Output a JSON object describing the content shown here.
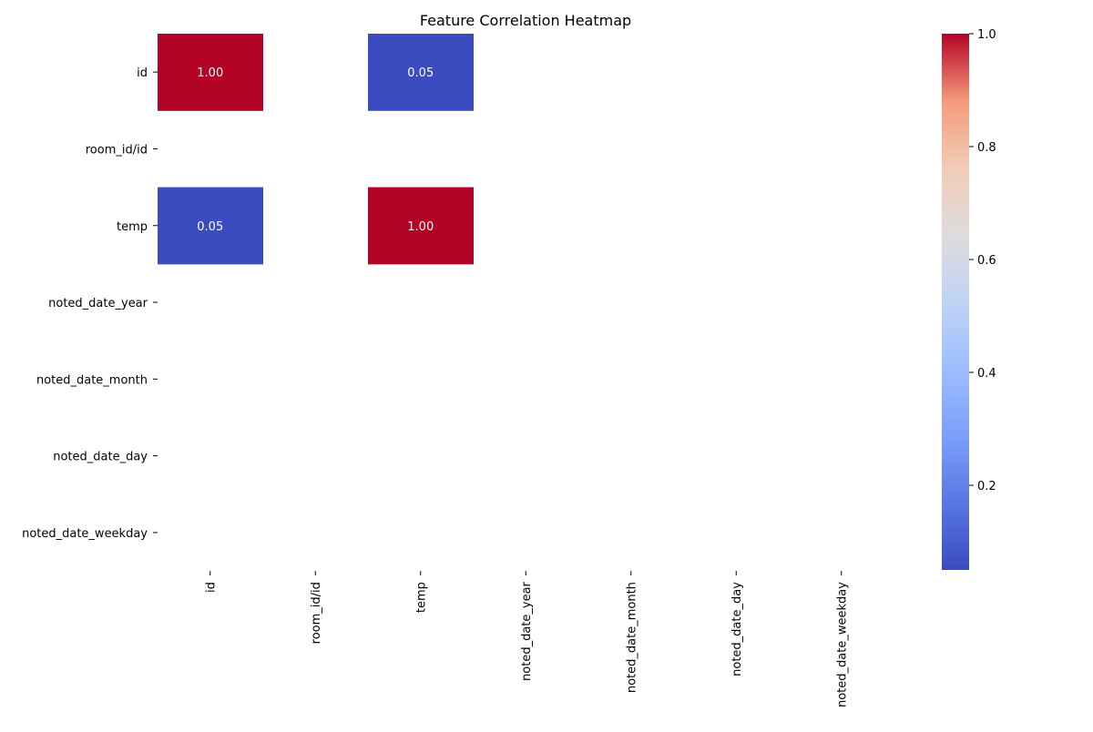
{
  "chart_data": {
    "type": "heatmap",
    "title": "Feature Correlation Heatmap",
    "rows": [
      "id",
      "room_id/id",
      "temp",
      "noted_date_year",
      "noted_date_month",
      "noted_date_day",
      "noted_date_weekday"
    ],
    "cols": [
      "id",
      "room_id/id",
      "temp",
      "noted_date_year",
      "noted_date_month",
      "noted_date_day",
      "noted_date_weekday"
    ],
    "values": [
      [
        1.0,
        null,
        0.05,
        null,
        null,
        null,
        null
      ],
      [
        null,
        null,
        null,
        null,
        null,
        null,
        null
      ],
      [
        0.05,
        null,
        1.0,
        null,
        null,
        null,
        null
      ],
      [
        null,
        null,
        null,
        null,
        null,
        null,
        null
      ],
      [
        null,
        null,
        null,
        null,
        null,
        null,
        null
      ],
      [
        null,
        null,
        null,
        null,
        null,
        null,
        null
      ],
      [
        null,
        null,
        null,
        null,
        null,
        null,
        null
      ]
    ],
    "cell_labels": [
      [
        "1.00",
        "",
        "0.05",
        "",
        "",
        "",
        ""
      ],
      [
        "",
        "",
        "",
        "",
        "",
        "",
        ""
      ],
      [
        "0.05",
        "",
        "1.00",
        "",
        "",
        "",
        ""
      ],
      [
        "",
        "",
        "",
        "",
        "",
        "",
        ""
      ],
      [
        "",
        "",
        "",
        "",
        "",
        "",
        ""
      ],
      [
        "",
        "",
        "",
        "",
        "",
        "",
        ""
      ],
      [
        "",
        "",
        "",
        "",
        "",
        "",
        ""
      ]
    ],
    "colormap": "coolwarm",
    "colorbar": {
      "range": [
        0.05,
        1.0
      ],
      "ticks": [
        0.2,
        0.4,
        0.6,
        0.8,
        1.0
      ],
      "tick_labels": [
        "0.2",
        "0.4",
        "0.6",
        "0.8",
        "1.0"
      ]
    },
    "colors": {
      "high": "#b40426",
      "low": "#3b4cc0"
    }
  }
}
